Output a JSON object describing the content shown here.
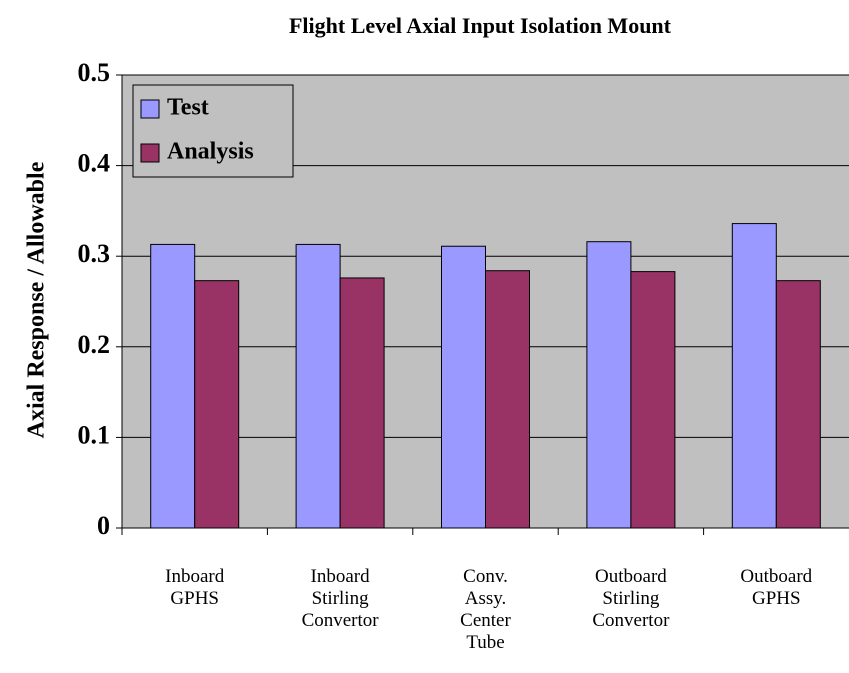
{
  "chart_data": {
    "type": "bar",
    "title": "Flight Level Axial Input Isolation Mount",
    "y_label": "Axial Response / Allowable",
    "categories": [
      "Inboard GPHS",
      "Inboard Stirling Convertor",
      "Conv. Assy. Center Tube",
      "Outboard Stirling Convertor",
      "Outboard GPHS"
    ],
    "series": [
      {
        "name": "Test",
        "color": "#9999ff",
        "values": [
          0.313,
          0.313,
          0.311,
          0.316,
          0.336
        ]
      },
      {
        "name": "Analysis",
        "color": "#993366",
        "values": [
          0.273,
          0.276,
          0.284,
          0.283,
          0.273
        ]
      }
    ],
    "ylim": [
      0,
      0.5
    ],
    "yticks": [
      0,
      0.1,
      0.2,
      0.3,
      0.4,
      0.5
    ],
    "grid": true,
    "legend": "upper left",
    "background": "#c0c0c0"
  }
}
